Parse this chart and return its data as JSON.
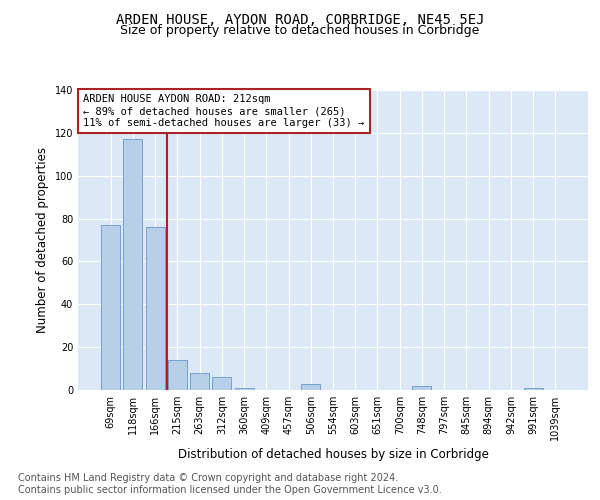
{
  "title": "ARDEN HOUSE, AYDON ROAD, CORBRIDGE, NE45 5EJ",
  "subtitle": "Size of property relative to detached houses in Corbridge",
  "xlabel": "Distribution of detached houses by size in Corbridge",
  "ylabel": "Number of detached properties",
  "categories": [
    "69sqm",
    "118sqm",
    "166sqm",
    "215sqm",
    "263sqm",
    "312sqm",
    "360sqm",
    "409sqm",
    "457sqm",
    "506sqm",
    "554sqm",
    "603sqm",
    "651sqm",
    "700sqm",
    "748sqm",
    "797sqm",
    "845sqm",
    "894sqm",
    "942sqm",
    "991sqm",
    "1039sqm"
  ],
  "values": [
    77,
    117,
    76,
    14,
    8,
    6,
    1,
    0,
    0,
    3,
    0,
    0,
    0,
    0,
    2,
    0,
    0,
    0,
    0,
    1,
    0
  ],
  "bar_color": "#b8cfe8",
  "bar_edge_color": "#6699cc",
  "vline_color": "#aa2222",
  "annotation_text": "ARDEN HOUSE AYDON ROAD: 212sqm\n← 89% of detached houses are smaller (265)\n11% of semi-detached houses are larger (33) →",
  "annotation_box_color": "#aa2222",
  "ylim": [
    0,
    140
  ],
  "yticks": [
    0,
    20,
    40,
    60,
    80,
    100,
    120,
    140
  ],
  "bg_color": "#dce8f5",
  "footer_text": "Contains HM Land Registry data © Crown copyright and database right 2024.\nContains public sector information licensed under the Open Government Licence v3.0.",
  "title_fontsize": 10,
  "subtitle_fontsize": 9,
  "label_fontsize": 8.5,
  "tick_fontsize": 7,
  "footer_fontsize": 7,
  "annot_fontsize": 7.5
}
